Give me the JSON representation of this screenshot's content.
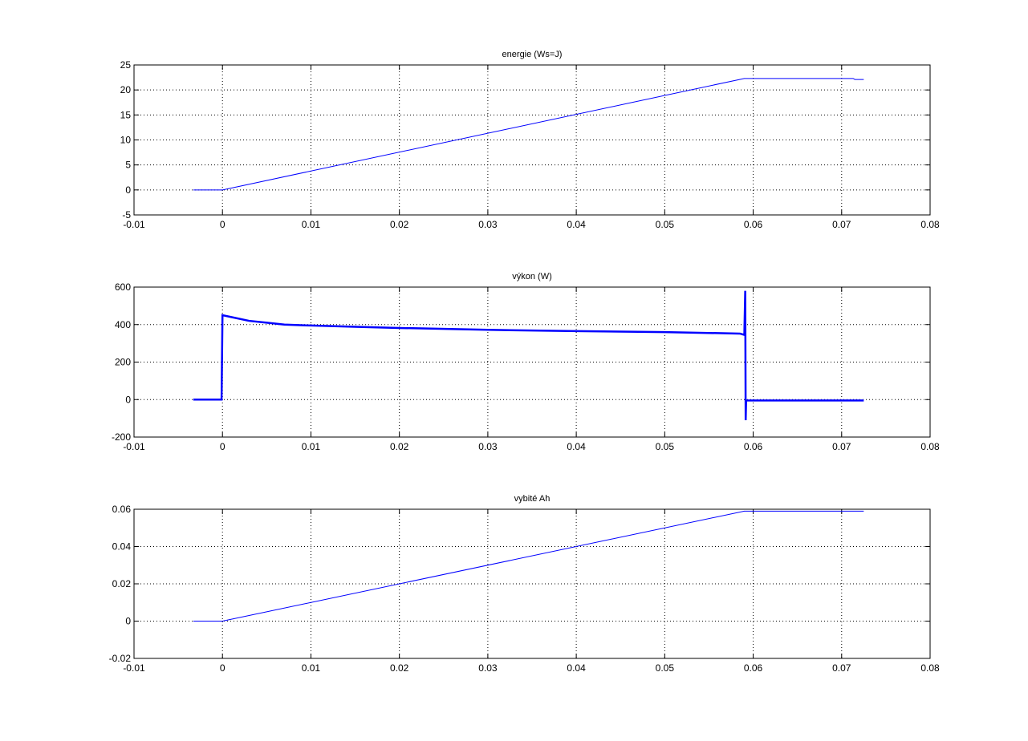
{
  "chart_data": [
    {
      "type": "line",
      "title": "energie (Ws=J)",
      "color": "#0000ff",
      "grid": true,
      "x": [
        -0.0033,
        0,
        0.059,
        0.0713,
        0.0715,
        0.0725
      ],
      "values": [
        0,
        0,
        22.3,
        22.3,
        22.1,
        22.1
      ],
      "xlim": [
        -0.01,
        0.08
      ],
      "xticks": [
        -0.01,
        0,
        0.01,
        0.02,
        0.03,
        0.04,
        0.05,
        0.06,
        0.07,
        0.08
      ],
      "ylim": [
        -5,
        25
      ],
      "yticks": [
        -5,
        0,
        5,
        10,
        15,
        20,
        25
      ]
    },
    {
      "type": "line",
      "title": "výkon (W)",
      "color": "#0000ff",
      "grid": true,
      "x": [
        -0.0033,
        -0.0001,
        0,
        0.001,
        0.003,
        0.005,
        0.007,
        0.01,
        0.015,
        0.02,
        0.03,
        0.04,
        0.05,
        0.0585,
        0.059,
        0.0591,
        0.05915,
        0.0592,
        0.0725
      ],
      "values": [
        0,
        0,
        450,
        440,
        420,
        410,
        400,
        395,
        388,
        382,
        372,
        365,
        360,
        352,
        345,
        580,
        -110,
        -5,
        -5
      ],
      "xlim": [
        -0.01,
        0.08
      ],
      "xticks": [
        -0.01,
        0,
        0.01,
        0.02,
        0.03,
        0.04,
        0.05,
        0.06,
        0.07,
        0.08
      ],
      "ylim": [
        -200,
        600
      ],
      "yticks": [
        -200,
        0,
        200,
        400,
        600
      ]
    },
    {
      "type": "line",
      "title": "vybité Ah",
      "color": "#0000ff",
      "grid": true,
      "x": [
        -0.0033,
        0,
        0.059,
        0.0725
      ],
      "values": [
        0,
        0,
        0.059,
        0.059
      ],
      "xlim": [
        -0.01,
        0.08
      ],
      "xticks": [
        -0.01,
        0,
        0.01,
        0.02,
        0.03,
        0.04,
        0.05,
        0.06,
        0.07,
        0.08
      ],
      "ylim": [
        -0.02,
        0.06
      ],
      "yticks": [
        -0.02,
        0,
        0.02,
        0.04,
        0.06
      ]
    }
  ]
}
